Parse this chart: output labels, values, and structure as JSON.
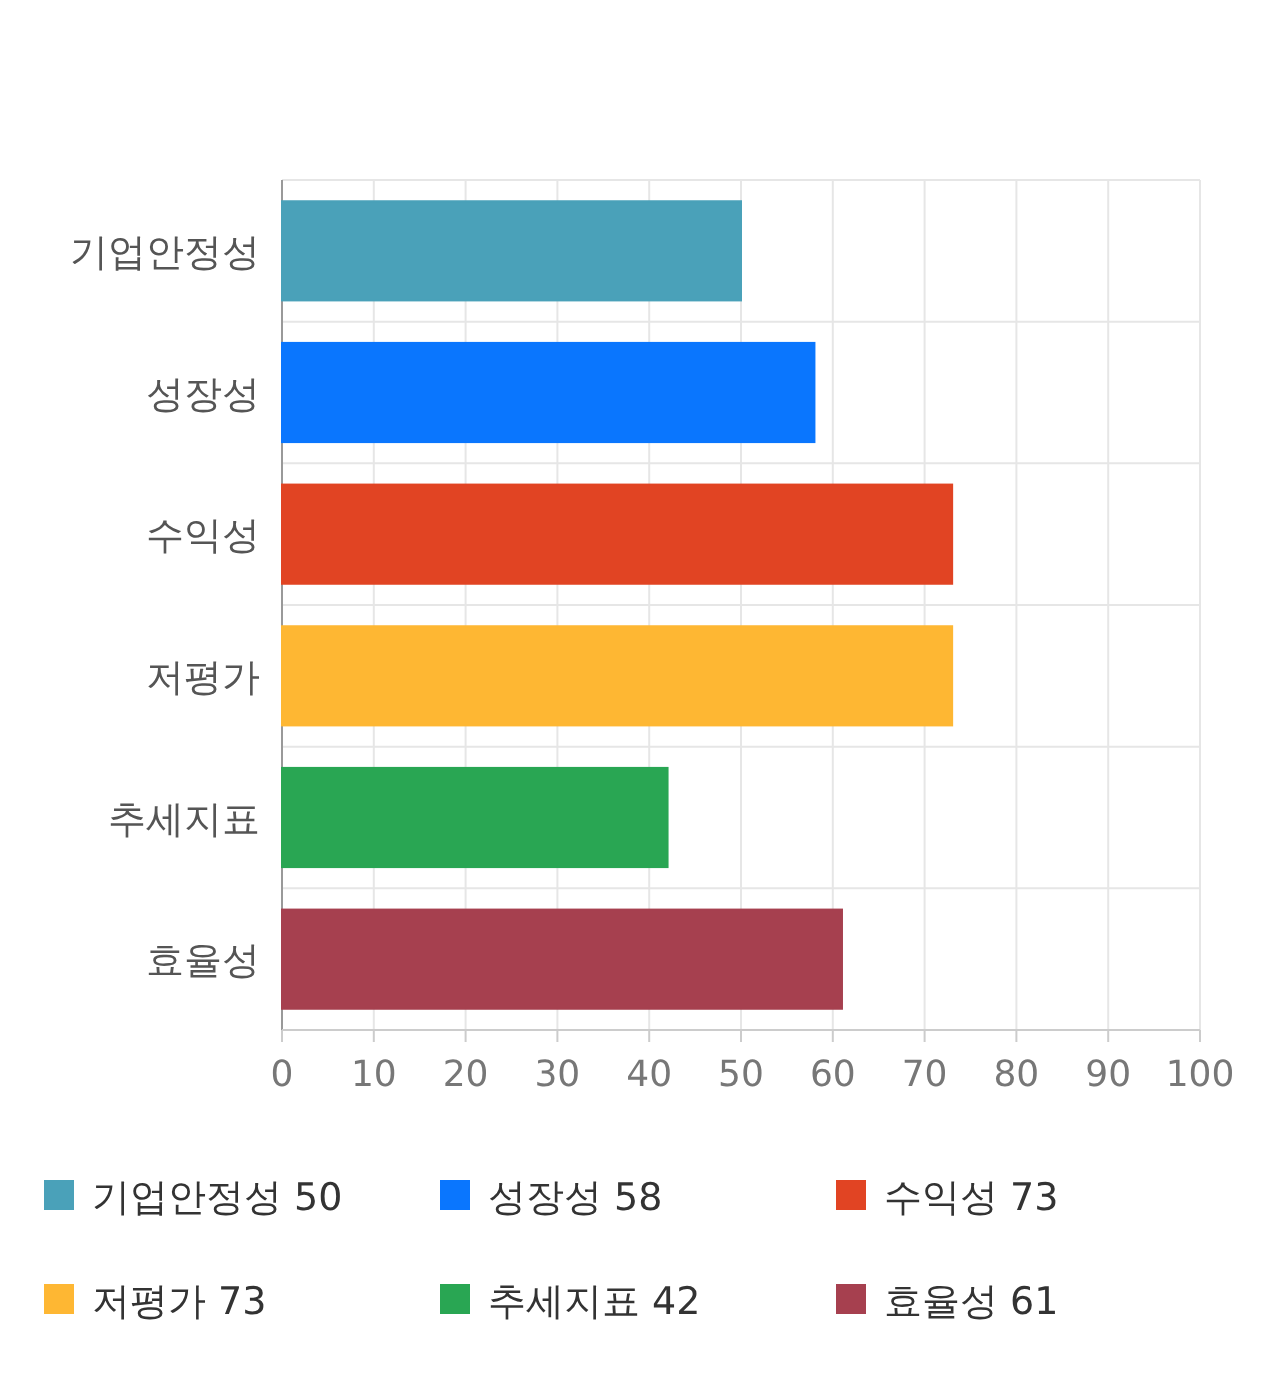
{
  "chart_data": {
    "type": "bar",
    "orientation": "horizontal",
    "categories": [
      "기업안정성",
      "성장성",
      "수익성",
      "저평가",
      "추세지표",
      "효율성"
    ],
    "series": [
      {
        "name": "기업안정성 50",
        "color": "#4aa1b9",
        "values": [
          50,
          null,
          null,
          null,
          null,
          null
        ]
      },
      {
        "name": "성장성 58",
        "color": "#0a76fe",
        "values": [
          null,
          58,
          null,
          null,
          null,
          null
        ]
      },
      {
        "name": "수익성 73",
        "color": "#e14423",
        "values": [
          null,
          null,
          73,
          null,
          null,
          null
        ]
      },
      {
        "name": "저평가 73",
        "color": "#feb733",
        "values": [
          null,
          null,
          null,
          73,
          null,
          null
        ]
      },
      {
        "name": "추세지표 42",
        "color": "#29a653",
        "values": [
          null,
          null,
          null,
          null,
          42,
          null
        ]
      },
      {
        "name": "효율성 61",
        "color": "#a6404f",
        "values": [
          null,
          null,
          null,
          null,
          null,
          61
        ]
      }
    ],
    "xlim": [
      0,
      100
    ],
    "xticks": [
      0,
      10,
      20,
      30,
      40,
      50,
      60,
      70,
      80,
      90,
      100
    ],
    "grid": true,
    "legend": "bottom"
  }
}
